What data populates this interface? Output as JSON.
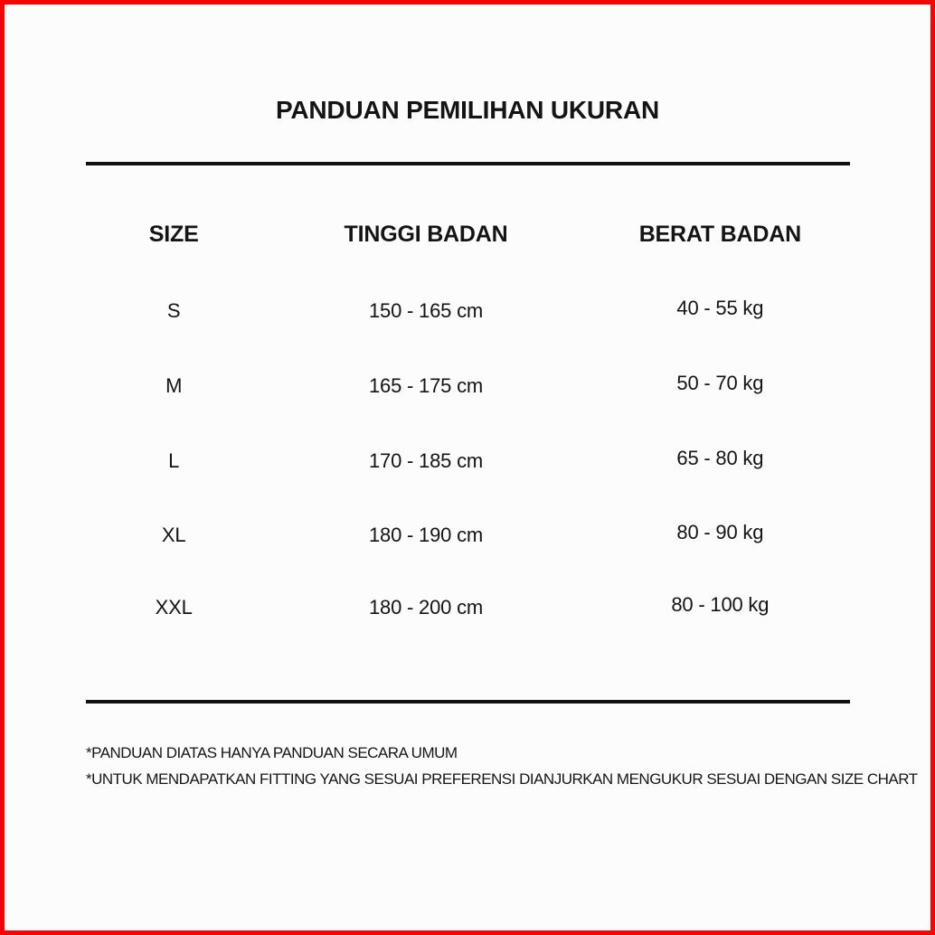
{
  "page": {
    "title": "PANDUAN PEMILIHAN UKURAN"
  },
  "colors": {
    "border": "#f70505",
    "background": "#fdfcfc",
    "text": "#141414",
    "rule": "#111111"
  },
  "chart_data": {
    "type": "table",
    "title": "PANDUAN PEMILIHAN UKURAN",
    "columns": [
      "SIZE",
      "TINGGI BADAN",
      "BERAT BADAN"
    ],
    "rows": [
      [
        "S",
        "150 - 165 cm",
        "40 - 55 kg"
      ],
      [
        "M",
        "165 - 175 cm",
        "50 - 70 kg"
      ],
      [
        "L",
        "170 - 185 cm",
        "65 - 80 kg"
      ],
      [
        "XL",
        "180 - 190 cm",
        "80 - 90 kg"
      ],
      [
        "XXL",
        "180 - 200 cm",
        "80 - 100 kg"
      ]
    ],
    "units": {
      "tinggi_badan": "cm",
      "berat_badan": "kg"
    },
    "footnotes": [
      "*PANDUAN DIATAS HANYA PANDUAN SECARA UMUM",
      "*UNTUK MENDAPATKAN FITTING YANG SESUAI PREFERENSI DIANJURKAN MENGUKUR SESUAI DENGAN SIZE CHART"
    ]
  }
}
